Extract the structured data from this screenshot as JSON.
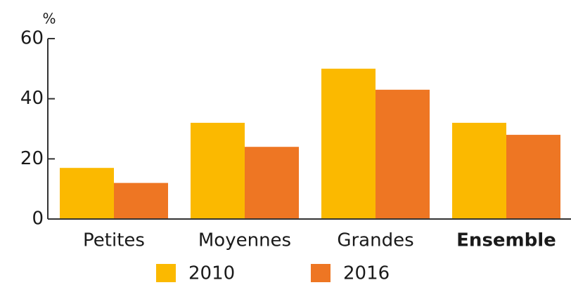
{
  "chart_data": {
    "type": "bar",
    "y_label": "%",
    "categories": [
      "Petites",
      "Moyennes",
      "Grandes",
      "Ensemble"
    ],
    "series": [
      {
        "name": "2010",
        "color": "#fbb900",
        "values": [
          17,
          32,
          50,
          32
        ]
      },
      {
        "name": "2016",
        "color": "#ee7623",
        "values": [
          12,
          24,
          43,
          28
        ]
      }
    ],
    "ylim": [
      0,
      60
    ],
    "yticks": [
      0,
      20,
      40,
      60
    ],
    "grid": false,
    "legend": "bottom"
  }
}
